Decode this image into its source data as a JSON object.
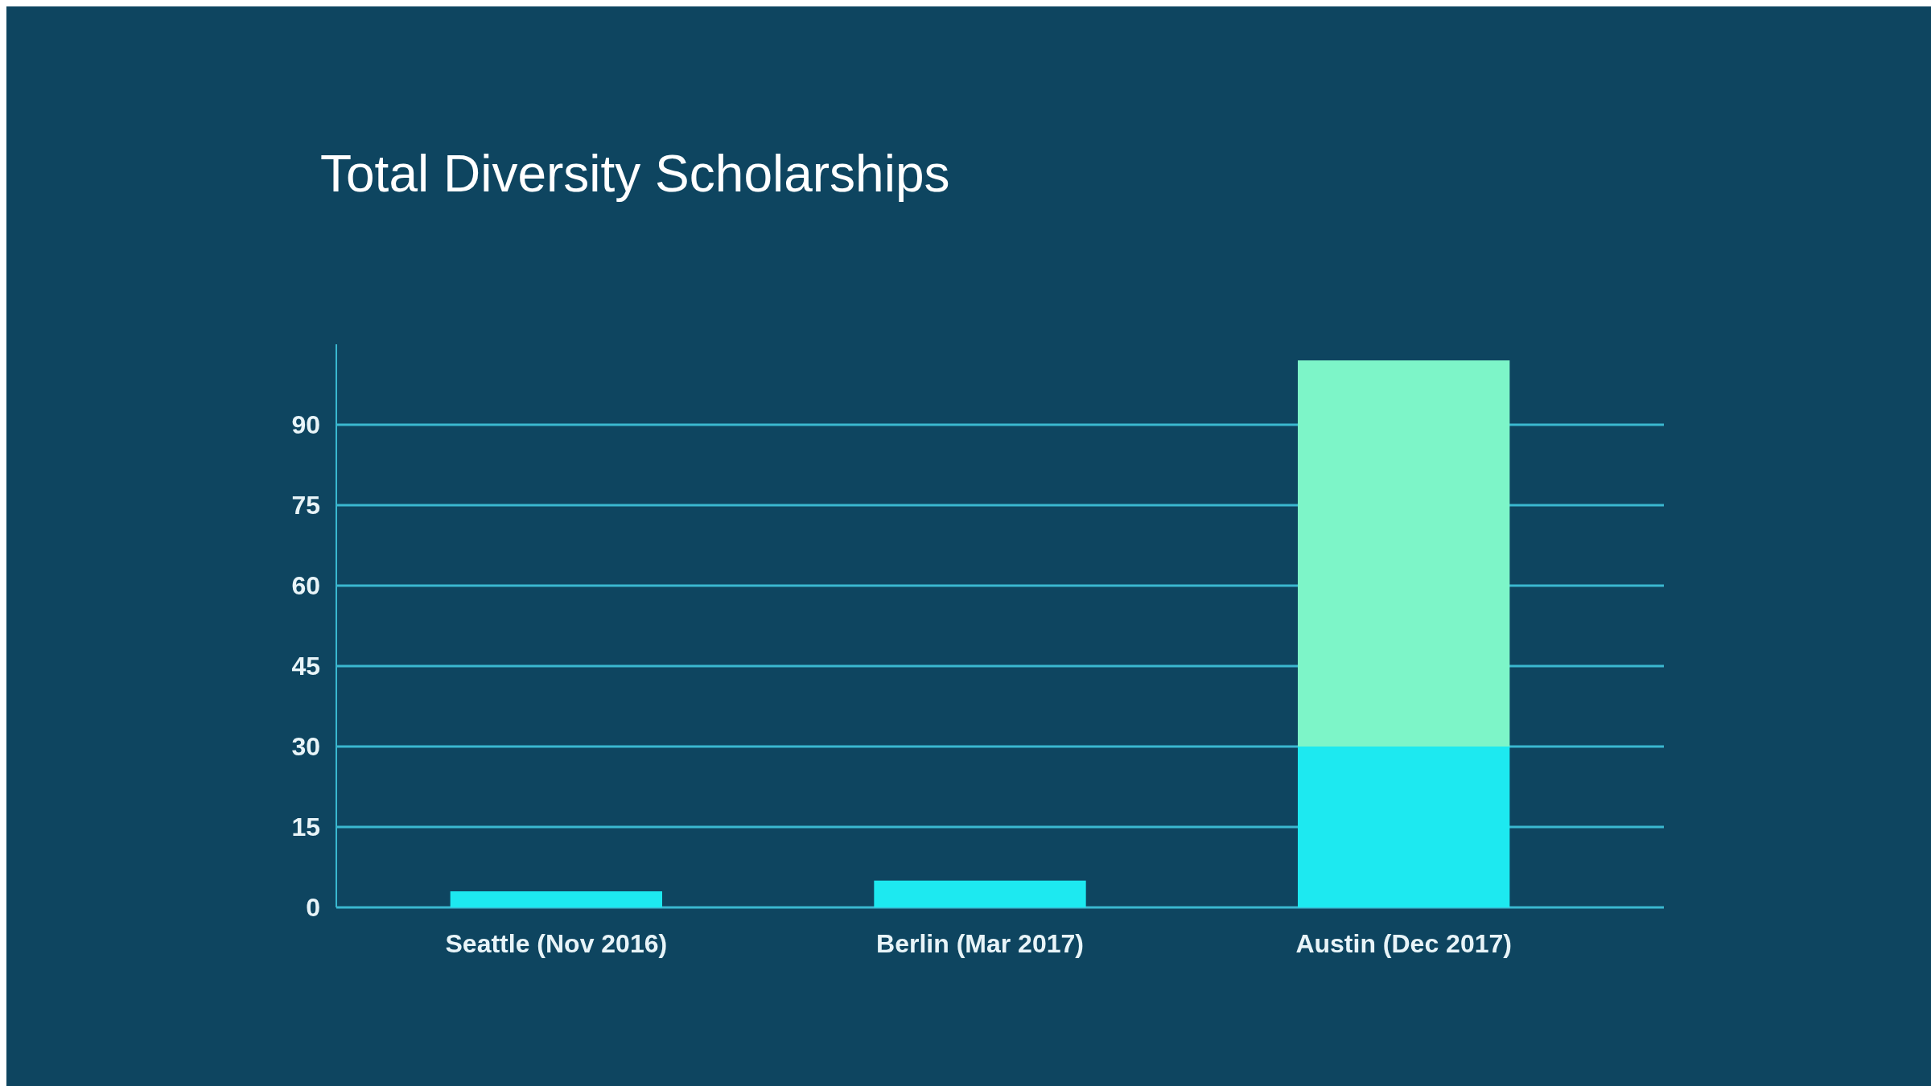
{
  "chart_data": {
    "type": "bar",
    "title": "Total Diversity Scholarships",
    "categories": [
      "Seattle (Nov 2016)",
      "Berlin (Mar 2017)",
      "Austin (Dec 2017)"
    ],
    "stacked": true,
    "series": [
      {
        "color": "#1de9f0",
        "values": [
          3,
          5,
          30
        ]
      },
      {
        "color": "#7df5c8",
        "values": [
          null,
          null,
          72
        ]
      }
    ],
    "ylim": [
      0,
      105
    ],
    "yticks": [
      0,
      15,
      30,
      45,
      60,
      75,
      90
    ],
    "grid": "y"
  }
}
